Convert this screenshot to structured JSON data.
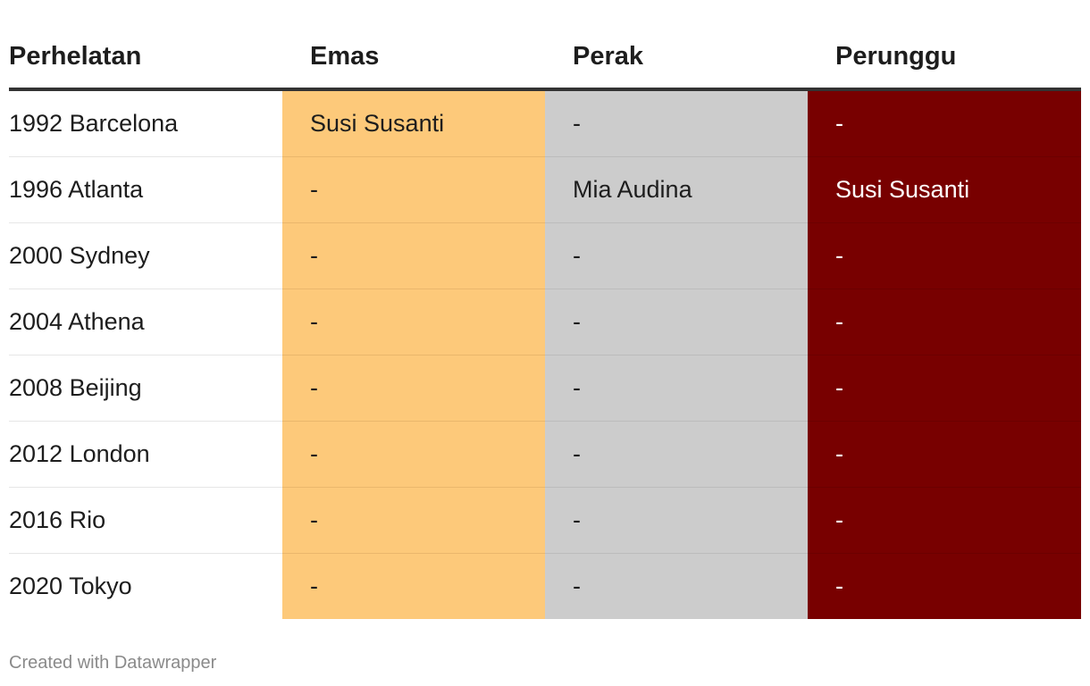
{
  "chart_data": {
    "type": "table",
    "columns": [
      "Perhelatan",
      "Emas",
      "Perak",
      "Perunggu"
    ],
    "rows": [
      [
        "1992 Barcelona",
        "Susi Susanti",
        "-",
        "-"
      ],
      [
        "1996 Atlanta",
        "-",
        "Mia Audina",
        "Susi Susanti"
      ],
      [
        "2000 Sydney",
        "-",
        "-",
        "-"
      ],
      [
        "2004 Athena",
        "-",
        "-",
        "-"
      ],
      [
        "2008 Beijing",
        "-",
        "-",
        "-"
      ],
      [
        "2012 London",
        "-",
        "-",
        "-"
      ],
      [
        "2016 Rio",
        "-",
        "-",
        "-"
      ],
      [
        "2020 Tokyo",
        "-",
        "-",
        "-"
      ]
    ],
    "column_colors": [
      "#ffffff",
      "#fdc97a",
      "#cccccc",
      "#780000"
    ]
  },
  "footer": {
    "credit": "Created with Datawrapper"
  }
}
